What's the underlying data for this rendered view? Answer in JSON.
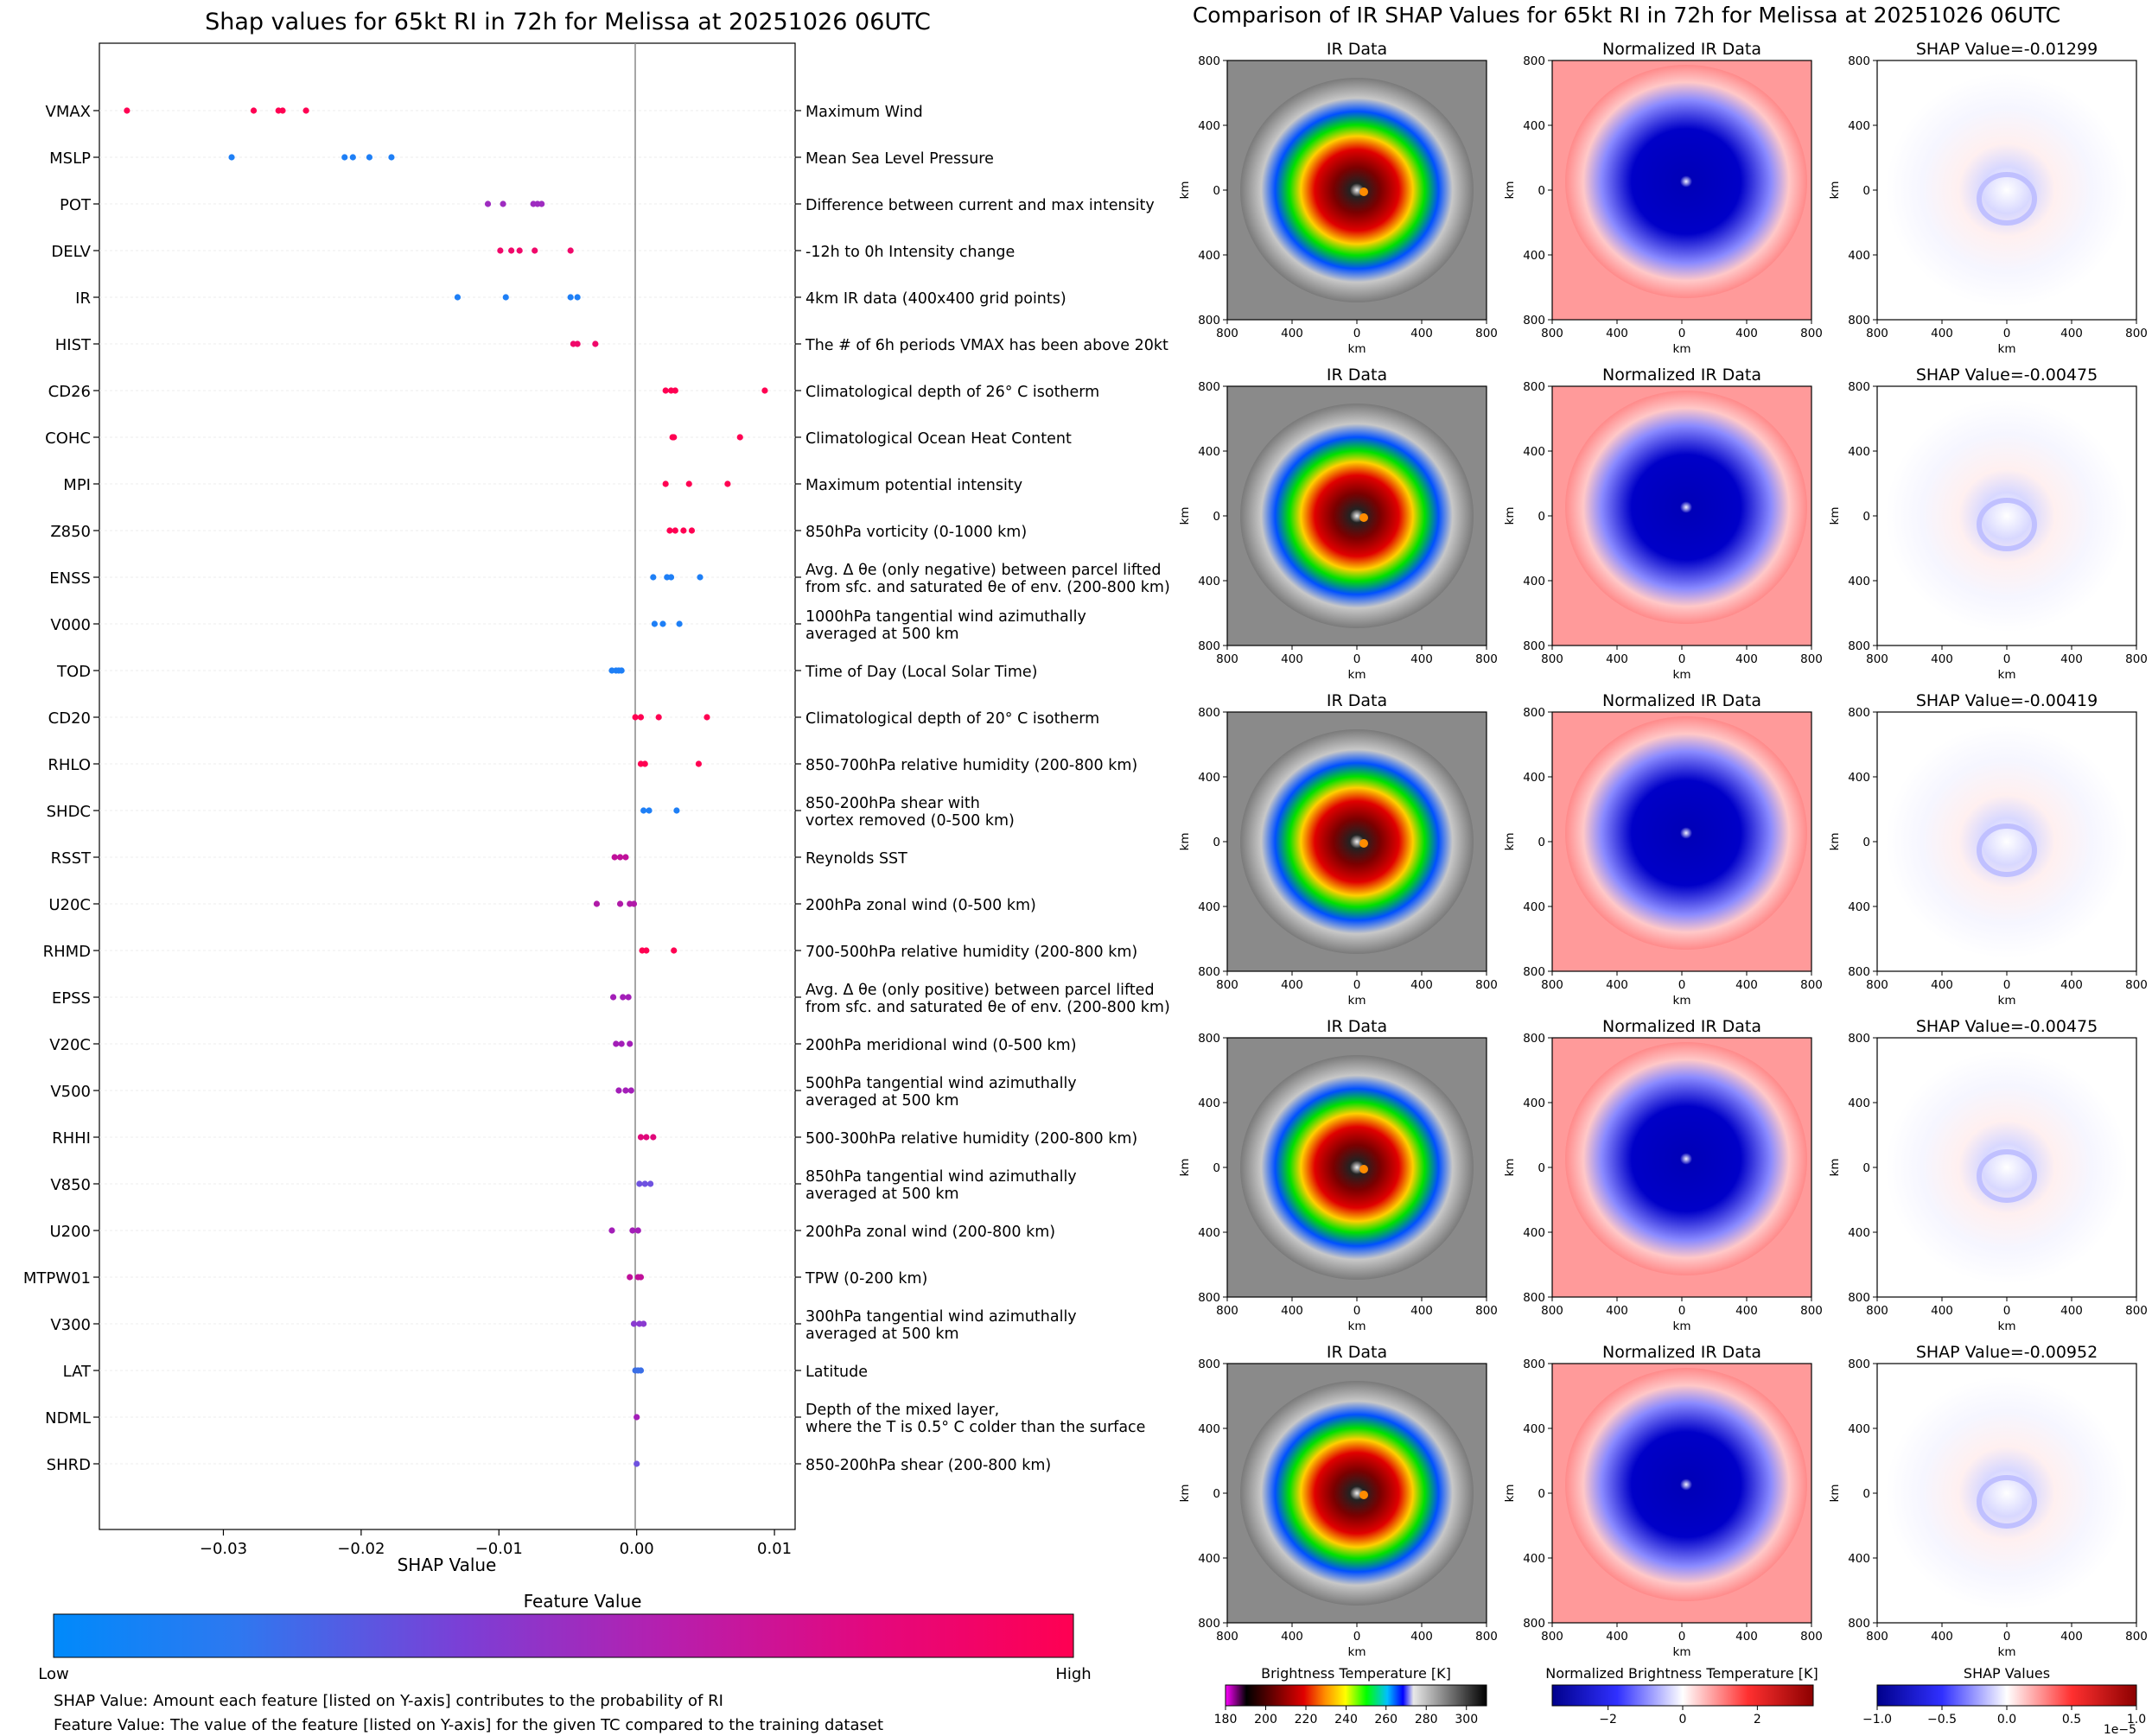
{
  "left": {
    "title": "Shap values for 65kt RI in 72h for Melissa at 20251026 06UTC",
    "xlabel": "SHAP Value",
    "colorbar_title": "Feature Value",
    "colorbar_low": "Low",
    "colorbar_high": "High",
    "note1": "SHAP Value: Amount each feature [listed on Y-axis] contributes to the probability of RI",
    "note2": "Feature Value: The value of the feature [listed on Y-axis] for the given TC compared to the training dataset"
  },
  "right": {
    "title": "Comparison of IR SHAP Values for 65kt RI in 72h for Melissa at 20251026 06UTC",
    "col_titles": [
      "IR Data",
      "Normalized IR Data"
    ],
    "shap_titles": [
      "SHAP Value=-0.01299",
      "SHAP Value=-0.00475",
      "SHAP Value=-0.00419",
      "SHAP Value=-0.00475",
      "SHAP Value=-0.00952"
    ],
    "axis_label": "km",
    "ticks": [
      "800",
      "400",
      "0",
      "400",
      "800"
    ],
    "colorbars": [
      {
        "title": "Brightness Temperature [K]",
        "ticks": [
          "180",
          "200",
          "220",
          "240",
          "260",
          "280",
          "300"
        ]
      },
      {
        "title": "Normalized Brightness Temperature [K]",
        "ticks": [
          "−2",
          "0",
          "2"
        ]
      },
      {
        "title": "SHAP Values",
        "ticks": [
          "−1.0",
          "−0.5",
          "0.0",
          "0.5",
          "1.0"
        ],
        "exponent": "1e−5"
      }
    ]
  },
  "chart_data": [
    {
      "type": "scatter",
      "title": "Shap values for 65kt RI in 72h for Melissa at 20251026 06UTC",
      "xlabel": "SHAP Value",
      "xlim": [
        -0.039,
        0.0115
      ],
      "xticks": [
        -0.03,
        -0.02,
        -0.01,
        0.0,
        0.01
      ],
      "xtick_labels": [
        "−0.03",
        "−0.02",
        "−0.01",
        "0.00",
        "0.01"
      ],
      "features": [
        {
          "name": "VMAX",
          "desc": [
            "Maximum Wind"
          ],
          "color": "#ff0052",
          "values": [
            -0.037,
            -0.0278,
            -0.026,
            -0.0257,
            -0.024
          ]
        },
        {
          "name": "MSLP",
          "desc": [
            "Mean Sea Level Pressure"
          ],
          "color": "#1e7ff6",
          "values": [
            -0.0294,
            -0.0212,
            -0.0206,
            -0.0194,
            -0.0178
          ]
        },
        {
          "name": "POT",
          "desc": [
            "Difference between current and max intensity"
          ],
          "color": "#9e2cc0",
          "values": [
            -0.0108,
            -0.0097,
            -0.0075,
            -0.0072,
            -0.0069
          ]
        },
        {
          "name": "DELV",
          "desc": [
            "-12h to 0h Intensity change"
          ],
          "color": "#f0086a",
          "values": [
            -0.0099,
            -0.0091,
            -0.0085,
            -0.0074,
            -0.0048
          ]
        },
        {
          "name": "IR",
          "desc": [
            "4km IR data (400x400 grid points)"
          ],
          "color": "#1e7ff6",
          "values": [
            -0.013,
            -0.0095,
            -0.0048,
            -0.0043
          ]
        },
        {
          "name": "HIST",
          "desc": [
            "The # of 6h periods VMAX has been above 20kt"
          ],
          "color": "#f0086a",
          "values": [
            -0.0046,
            -0.0043,
            -0.003
          ]
        },
        {
          "name": "CD26",
          "desc": [
            "Climatological depth of 26° C isotherm"
          ],
          "color": "#ff0052",
          "values": [
            0.0021,
            0.0025,
            0.0028,
            0.0093
          ]
        },
        {
          "name": "COHC",
          "desc": [
            "Climatological Ocean Heat Content"
          ],
          "color": "#ff0052",
          "values": [
            0.0026,
            0.0027,
            0.0075
          ]
        },
        {
          "name": "MPI",
          "desc": [
            "Maximum potential intensity"
          ],
          "color": "#ff0052",
          "values": [
            0.0021,
            0.0038,
            0.0066
          ]
        },
        {
          "name": "Z850",
          "desc": [
            "850hPa vorticity (0-1000 km)"
          ],
          "color": "#ff0052",
          "values": [
            0.0024,
            0.0028,
            0.0034,
            0.004
          ]
        },
        {
          "name": "ENSS",
          "desc": [
            "Avg. Δ θe (only negative) between parcel lifted",
            "from sfc. and saturated θe of env. (200-800 km)"
          ],
          "color": "#1e7ff6",
          "values": [
            0.0012,
            0.0022,
            0.0025,
            0.0046
          ]
        },
        {
          "name": "V000",
          "desc": [
            "1000hPa tangential wind azimuthally",
            "averaged at 500 km"
          ],
          "color": "#1e7ff6",
          "values": [
            0.0013,
            0.0019,
            0.0031
          ]
        },
        {
          "name": "TOD",
          "desc": [
            "Time of Day (Local Solar Time)"
          ],
          "color": "#1e7ff6",
          "values": [
            -0.0018,
            -0.0015,
            -0.0013,
            -0.0011
          ]
        },
        {
          "name": "CD20",
          "desc": [
            "Climatological depth of 20° C isotherm"
          ],
          "color": "#ff0052",
          "values": [
            -0.0001,
            0.0003,
            0.0016,
            0.0051
          ]
        },
        {
          "name": "RHLO",
          "desc": [
            "850-700hPa relative humidity (200-800 km)"
          ],
          "color": "#ff0052",
          "values": [
            0.0003,
            0.0006,
            0.0045
          ]
        },
        {
          "name": "SHDC",
          "desc": [
            "850-200hPa shear with",
            "vortex removed (0-500 km)"
          ],
          "color": "#1e7ff6",
          "values": [
            0.0005,
            0.0009,
            0.0029
          ]
        },
        {
          "name": "RSST",
          "desc": [
            "Reynolds SST"
          ],
          "color": "#c0109a",
          "values": [
            -0.0016,
            -0.0012,
            -0.0008
          ]
        },
        {
          "name": "U20C",
          "desc": [
            "200hPa zonal wind (0-500 km)"
          ],
          "color": "#b01aa8",
          "values": [
            -0.0029,
            -0.0012,
            -0.0005,
            -0.0002
          ]
        },
        {
          "name": "RHMD",
          "desc": [
            "700-500hPa relative humidity (200-800 km)"
          ],
          "color": "#ff0052",
          "values": [
            0.0004,
            0.0007,
            0.0027
          ]
        },
        {
          "name": "EPSS",
          "desc": [
            "Avg. Δ θe (only positive) between parcel lifted",
            "from sfc. and saturated θe of env. (200-800 km)"
          ],
          "color": "#a31eb8",
          "values": [
            -0.0017,
            -0.001,
            -0.0006
          ]
        },
        {
          "name": "V20C",
          "desc": [
            "200hPa meridional wind (0-500 km)"
          ],
          "color": "#a31eb8",
          "values": [
            -0.0015,
            -0.0011,
            -0.0005
          ]
        },
        {
          "name": "V500",
          "desc": [
            "500hPa tangential wind azimuthally",
            "averaged at 500 km"
          ],
          "color": "#a31eb8",
          "values": [
            -0.0013,
            -0.0008,
            -0.0004
          ]
        },
        {
          "name": "RHHI",
          "desc": [
            "500-300hPa relative humidity (200-800 km)"
          ],
          "color": "#e0087a",
          "values": [
            0.0003,
            0.0007,
            0.0012
          ]
        },
        {
          "name": "V850",
          "desc": [
            "850hPa tangential wind azimuthally",
            "averaged at 500 km"
          ],
          "color": "#6f52e0",
          "values": [
            0.0002,
            0.0006,
            0.001
          ]
        },
        {
          "name": "U200",
          "desc": [
            "200hPa zonal wind (200-800 km)"
          ],
          "color": "#a31eb8",
          "values": [
            -0.0018,
            -0.0003,
            0.0001
          ]
        },
        {
          "name": "MTPW01",
          "desc": [
            "TPW (0-200 km)"
          ],
          "color": "#c0109a",
          "values": [
            -0.0005,
            0.0001,
            0.0003
          ]
        },
        {
          "name": "V300",
          "desc": [
            "300hPa tangential wind azimuthally",
            "averaged at 500 km"
          ],
          "color": "#8a3ad0",
          "values": [
            -0.0002,
            0.0002,
            0.0005
          ]
        },
        {
          "name": "LAT",
          "desc": [
            "Latitude"
          ],
          "color": "#3a6ee6",
          "values": [
            -0.0001,
            0.0001,
            0.0003
          ]
        },
        {
          "name": "NDML",
          "desc": [
            "Depth of the mixed layer,",
            "where the T is 0.5° C colder than the surface"
          ],
          "color": "#a31eb8",
          "values": [
            0.0
          ]
        },
        {
          "name": "SHRD",
          "desc": [
            "850-200hPa shear (200-800 km)"
          ],
          "color": "#6f52e0",
          "values": [
            0.0
          ]
        }
      ]
    },
    {
      "type": "heatmap",
      "title": "Comparison of IR SHAP Values for 65kt RI in 72h for Melissa at 20251026 06UTC",
      "rows": 5,
      "columns": [
        "IR Data",
        "Normalized IR Data",
        "SHAP Value"
      ],
      "shap_values": [
        -0.01299,
        -0.00475,
        -0.00419,
        -0.00475,
        -0.00952
      ],
      "xlim_km": [
        -800,
        800
      ],
      "ylim_km": [
        -800,
        800
      ],
      "colorbar_ranges": [
        [
          180,
          310
        ],
        [
          -3.5,
          3.5
        ],
        [
          -1e-05,
          1e-05
        ]
      ]
    }
  ]
}
